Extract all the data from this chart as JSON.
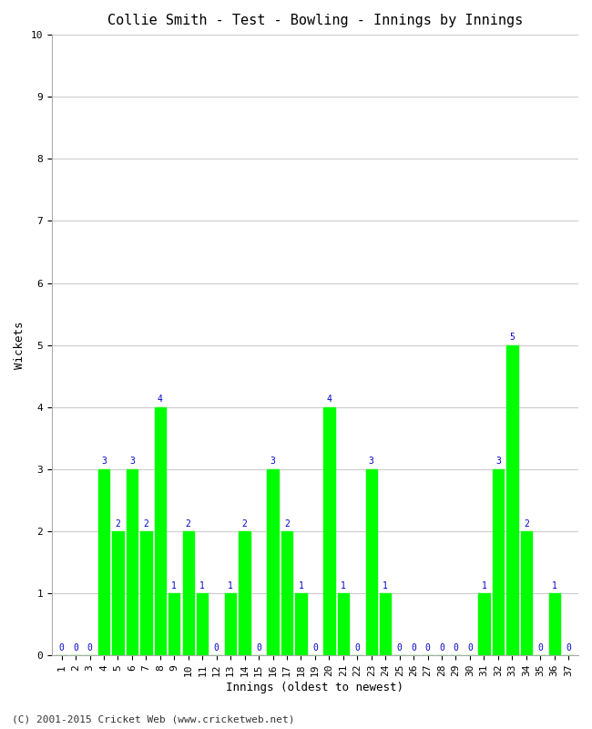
{
  "title": "Collie Smith - Test - Bowling - Innings by Innings",
  "xlabel": "Innings (oldest to newest)",
  "ylabel": "Wickets",
  "footer": "(C) 2001-2015 Cricket Web (www.cricketweb.net)",
  "innings": [
    1,
    2,
    3,
    4,
    5,
    6,
    7,
    8,
    9,
    10,
    11,
    12,
    13,
    14,
    15,
    16,
    17,
    18,
    19,
    20,
    21,
    22,
    23,
    24,
    25,
    26,
    27,
    28,
    29,
    30,
    31,
    32,
    33,
    34,
    35,
    36,
    37
  ],
  "wickets": [
    0,
    0,
    0,
    3,
    2,
    3,
    2,
    4,
    1,
    2,
    1,
    0,
    1,
    2,
    0,
    3,
    2,
    1,
    0,
    4,
    1,
    0,
    3,
    1,
    0,
    0,
    0,
    0,
    0,
    0,
    1,
    3,
    5,
    2,
    0,
    1,
    0
  ],
  "bar_color": "#00ff00",
  "label_color": "#0000cc",
  "bg_color": "#ffffff",
  "ylim": [
    0,
    10
  ],
  "yticks": [
    0,
    1,
    2,
    3,
    4,
    5,
    6,
    7,
    8,
    9,
    10
  ],
  "grid_color": "#cccccc",
  "title_fontsize": 11,
  "axis_label_fontsize": 9,
  "tick_fontsize": 8,
  "bar_label_fontsize": 7,
  "footer_fontsize": 8
}
